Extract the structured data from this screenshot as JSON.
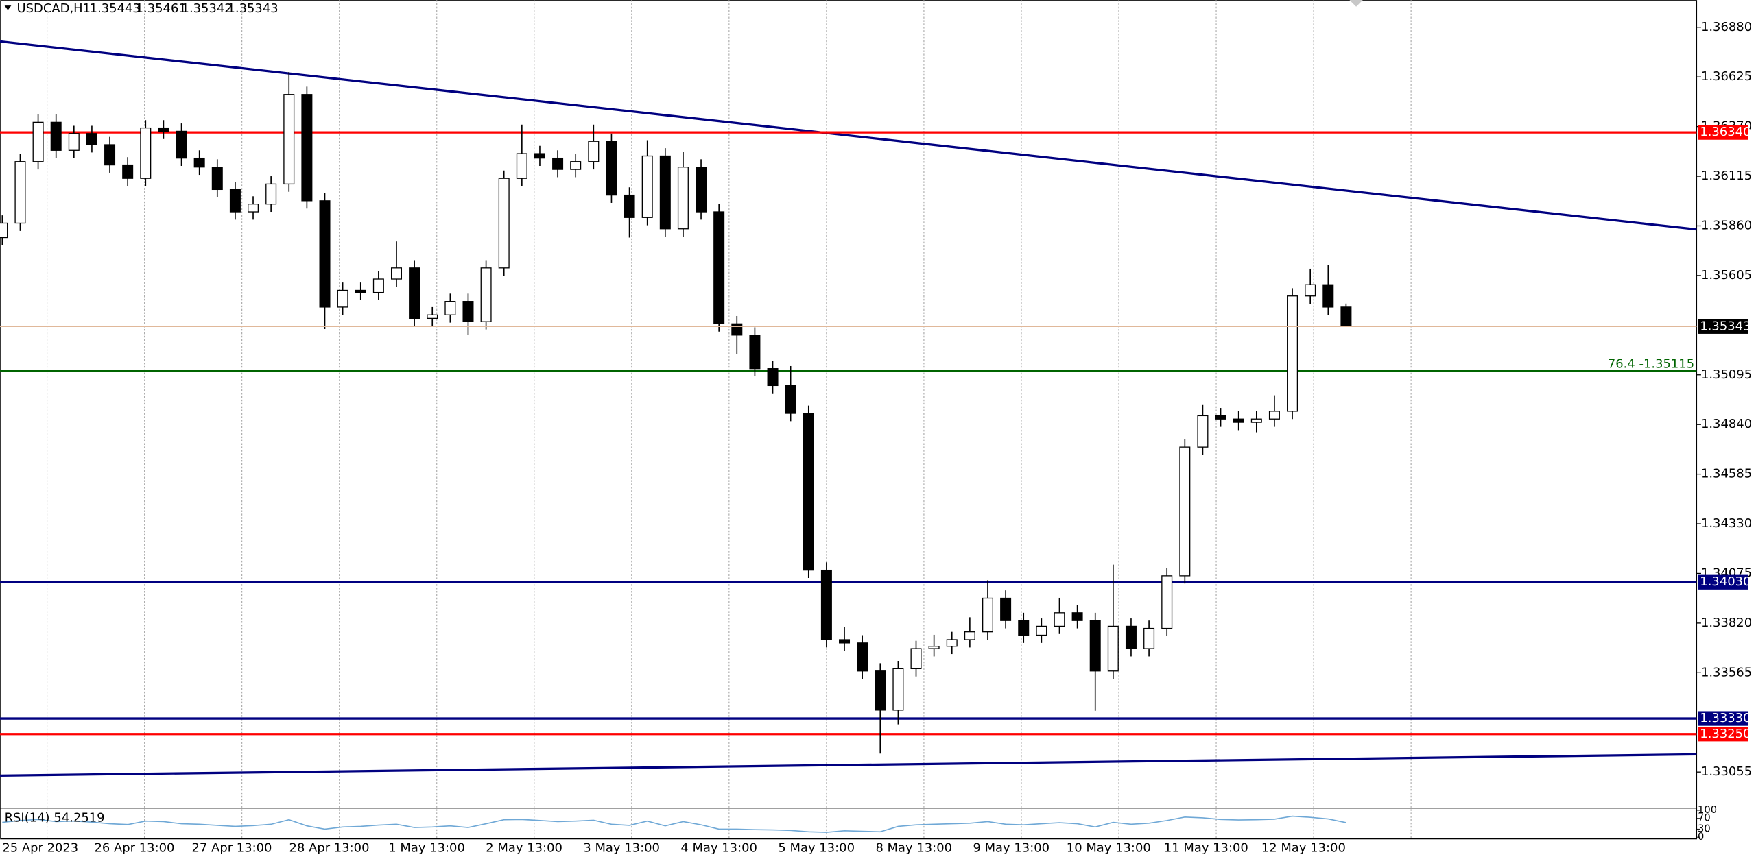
{
  "chart_data": {
    "type": "candlestick",
    "title": "USDCAD,H1",
    "open": [
      1.358,
      1.35874,
      1.3619,
      1.36392,
      1.36248,
      1.36334,
      1.36277,
      1.36173,
      1.36104,
      1.36363,
      1.36346,
      1.36208,
      1.36162,
      1.36047,
      1.35932,
      1.35972,
      1.36075,
      1.36535,
      1.35989,
      1.35443,
      1.35529,
      1.35518,
      1.35587,
      1.35644,
      1.35385,
      1.35403,
      1.35472,
      1.35368,
      1.35644,
      1.36104,
      1.36231,
      1.36208,
      1.3615,
      1.3619,
      1.36294,
      1.36018,
      1.35903,
      1.36219,
      1.35845,
      1.36162,
      1.35932,
      1.35357,
      1.35299,
      1.35127,
      1.3504,
      1.34897,
      1.34092,
      1.33735,
      1.33718,
      1.33574,
      1.33373,
      1.33586,
      1.33689,
      1.33701,
      1.33735,
      1.33775,
      1.33948,
      1.33833,
      1.33758,
      1.33804,
      1.33873,
      1.33833,
      1.33574,
      1.33804,
      1.33689,
      1.33793,
      1.34063,
      1.34724,
      1.34885,
      1.34868,
      1.34851,
      1.34868,
      1.34908,
      1.355,
      1.35558,
      1.35443
    ],
    "high": [
      1.35914,
      1.3623,
      1.36432,
      1.36432,
      1.36374,
      1.36374,
      1.36317,
      1.36213,
      1.36403,
      1.36403,
      1.36386,
      1.36248,
      1.36202,
      1.36087,
      1.36012,
      1.36115,
      1.3665,
      1.36575,
      1.36029,
      1.35569,
      1.35569,
      1.35627,
      1.3578,
      1.35684,
      1.35443,
      1.35512,
      1.35512,
      1.35684,
      1.36144,
      1.3638,
      1.36271,
      1.36248,
      1.3623,
      1.3638,
      1.36334,
      1.36058,
      1.363,
      1.36259,
      1.3624,
      1.36202,
      1.35972,
      1.35397,
      1.35339,
      1.35167,
      1.3514,
      1.34937,
      1.34132,
      1.338,
      1.33758,
      1.33614,
      1.33626,
      1.33729,
      1.3376,
      1.33775,
      1.3385,
      1.3404,
      1.33988,
      1.33873,
      1.33844,
      1.3395,
      1.33913,
      1.33873,
      1.3412,
      1.33844,
      1.33833,
      1.34103,
      1.34764,
      1.3494,
      1.34925,
      1.34908,
      1.34908,
      1.3499,
      1.3554,
      1.3564,
      1.3566,
      1.35461
    ],
    "low": [
      1.3576,
      1.35834,
      1.3615,
      1.36208,
      1.36208,
      1.36237,
      1.36133,
      1.36064,
      1.36064,
      1.36306,
      1.36168,
      1.36122,
      1.36007,
      1.35892,
      1.35892,
      1.35932,
      1.36035,
      1.35949,
      1.3533,
      1.35403,
      1.35478,
      1.35478,
      1.35547,
      1.35345,
      1.35345,
      1.35363,
      1.353,
      1.35328,
      1.35604,
      1.36064,
      1.36168,
      1.3611,
      1.3611,
      1.3615,
      1.35978,
      1.358,
      1.35863,
      1.35805,
      1.35805,
      1.35892,
      1.35317,
      1.352,
      1.35087,
      1.35,
      1.34857,
      1.34052,
      1.33695,
      1.33678,
      1.33534,
      1.3315,
      1.333,
      1.33546,
      1.33649,
      1.33661,
      1.33695,
      1.33735,
      1.33793,
      1.33718,
      1.33718,
      1.33764,
      1.33793,
      1.3337,
      1.33534,
      1.33649,
      1.33649,
      1.33753,
      1.34023,
      1.34684,
      1.34828,
      1.34811,
      1.348,
      1.34828,
      1.34868,
      1.3546,
      1.35403,
      1.35342
    ],
    "close": [
      1.35874,
      1.3619,
      1.36392,
      1.36248,
      1.36334,
      1.36277,
      1.36173,
      1.36104,
      1.36363,
      1.36346,
      1.36208,
      1.36162,
      1.36047,
      1.35932,
      1.35972,
      1.36075,
      1.36535,
      1.35989,
      1.35443,
      1.35529,
      1.35518,
      1.35587,
      1.35644,
      1.35385,
      1.35403,
      1.35472,
      1.35368,
      1.35644,
      1.36104,
      1.36231,
      1.36208,
      1.3615,
      1.3619,
      1.36294,
      1.36018,
      1.35903,
      1.36219,
      1.35845,
      1.36162,
      1.35932,
      1.35357,
      1.35299,
      1.35127,
      1.3504,
      1.34897,
      1.34092,
      1.33735,
      1.33718,
      1.33574,
      1.33373,
      1.33586,
      1.33689,
      1.33701,
      1.33735,
      1.33775,
      1.33948,
      1.33833,
      1.33758,
      1.33804,
      1.33873,
      1.33833,
      1.33574,
      1.33804,
      1.33689,
      1.33793,
      1.34063,
      1.34724,
      1.34885,
      1.34868,
      1.34851,
      1.34868,
      1.34908,
      1.355,
      1.35558,
      1.35443,
      1.35343
    ],
    "up_color": "#ffffff",
    "down_color": "#000000",
    "ylim": [
      1.3287,
      1.3702
    ],
    "yticks": [
      {
        "value": 1.3688,
        "label": "1.36880"
      },
      {
        "value": 1.36625,
        "label": "1.36625"
      },
      {
        "value": 1.3637,
        "label": "1.36370"
      },
      {
        "value": 1.36115,
        "label": "1.36115"
      },
      {
        "value": 1.3586,
        "label": "1.35860"
      },
      {
        "value": 1.35605,
        "label": "1.35605"
      },
      {
        "value": 1.35095,
        "label": "1.35095"
      },
      {
        "value": 1.3484,
        "label": "1.34840"
      },
      {
        "value": 1.34585,
        "label": "1.34585"
      },
      {
        "value": 1.3433,
        "label": "1.34330"
      },
      {
        "value": 1.34075,
        "label": "1.34075"
      },
      {
        "value": 1.3382,
        "label": "1.33820"
      },
      {
        "value": 1.33565,
        "label": "1.33565"
      },
      {
        "value": 1.33055,
        "label": "1.33055"
      }
    ],
    "x_labels": [
      "25 Apr 2023",
      "26 Apr 13:00",
      "27 Apr 13:00",
      "28 Apr 13:00",
      "1 May 13:00",
      "2 May 13:00",
      "3 May 13:00",
      "4 May 13:00",
      "5 May 13:00",
      "8 May 13:00",
      "9 May 13:00",
      "10 May 13:00",
      "11 May 13:00",
      "12 May 13:00"
    ],
    "levels": [
      {
        "value": 1.3634,
        "label": "1.36340",
        "color": "#ff0000"
      },
      {
        "value": 1.3403,
        "label": "1.34030",
        "color": "#000080"
      },
      {
        "value": 1.3333,
        "label": "1.33330",
        "color": "#000080"
      },
      {
        "value": 1.3325,
        "label": "1.33250",
        "color": "#ff0000"
      }
    ],
    "fib_level": {
      "value": 1.35115,
      "label": "76.4 -1.35115",
      "color": "#006400"
    },
    "indicator": {
      "name": "RSI(14)",
      "color": "#6fa8d6",
      "ylim": [
        0,
        100
      ],
      "yticks": [
        0,
        30,
        70,
        100
      ],
      "values": [
        55,
        62,
        66,
        58,
        60,
        56,
        50,
        47,
        60,
        58,
        50,
        48,
        44,
        40,
        43,
        48,
        65,
        42,
        30,
        38,
        40,
        45,
        48,
        36,
        38,
        42,
        36,
        50,
        65,
        66,
        62,
        58,
        60,
        63,
        48,
        44,
        60,
        42,
        58,
        46,
        30,
        30,
        28,
        27,
        25,
        20,
        18,
        24,
        22,
        20,
        40,
        46,
        48,
        50,
        52,
        58,
        48,
        46,
        50,
        54,
        50,
        38,
        55,
        48,
        52,
        62,
        75,
        72,
        66,
        64,
        65,
        67,
        78,
        74,
        68,
        54.2519
      ]
    }
  }
}
